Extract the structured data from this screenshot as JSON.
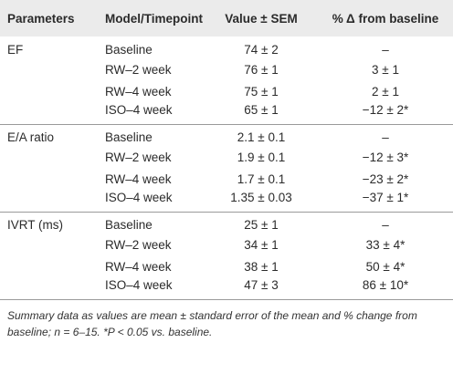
{
  "table": {
    "headers": [
      "Parameters",
      "Model/Timepoint",
      "Value ± SEM",
      "% Δ from baseline"
    ],
    "groups": [
      {
        "parameter": "EF",
        "rows": [
          {
            "model": "Baseline",
            "value": "74 ± 2",
            "delta": "–"
          },
          {
            "model": "RW–2 week",
            "value": "76 ± 1",
            "delta": "3 ± 1"
          },
          {
            "model": "RW–4 week",
            "value": "75 ± 1",
            "delta": "2 ± 1"
          },
          {
            "model": "ISO–4 week",
            "value": "65 ± 1",
            "delta": "−12 ± 2*"
          }
        ]
      },
      {
        "parameter": "E/A ratio",
        "rows": [
          {
            "model": "Baseline",
            "value": "2.1 ± 0.1",
            "delta": "–"
          },
          {
            "model": "RW–2 week",
            "value": "1.9 ± 0.1",
            "delta": "−12 ± 3*"
          },
          {
            "model": "RW–4 week",
            "value": "1.7 ± 0.1",
            "delta": "−23 ± 2*"
          },
          {
            "model": "ISO–4 week",
            "value": "1.35 ± 0.03",
            "delta": "−37 ± 1*"
          }
        ]
      },
      {
        "parameter": "IVRT (ms)",
        "rows": [
          {
            "model": "Baseline",
            "value": "25 ± 1",
            "delta": "–"
          },
          {
            "model": "RW–2 week",
            "value": "34 ± 1",
            "delta": "33 ± 4*"
          },
          {
            "model": "RW–4 week",
            "value": "38 ± 1",
            "delta": "50 ± 4*"
          },
          {
            "model": "ISO–4 week",
            "value": "47 ± 3",
            "delta": "86 ± 10*"
          }
        ]
      }
    ]
  },
  "footnote": {
    "line1": "Summary data as values are mean ± standard error of the mean and % change from",
    "line2": "baseline; n = 6–15. *P < 0.05 vs. baseline."
  }
}
